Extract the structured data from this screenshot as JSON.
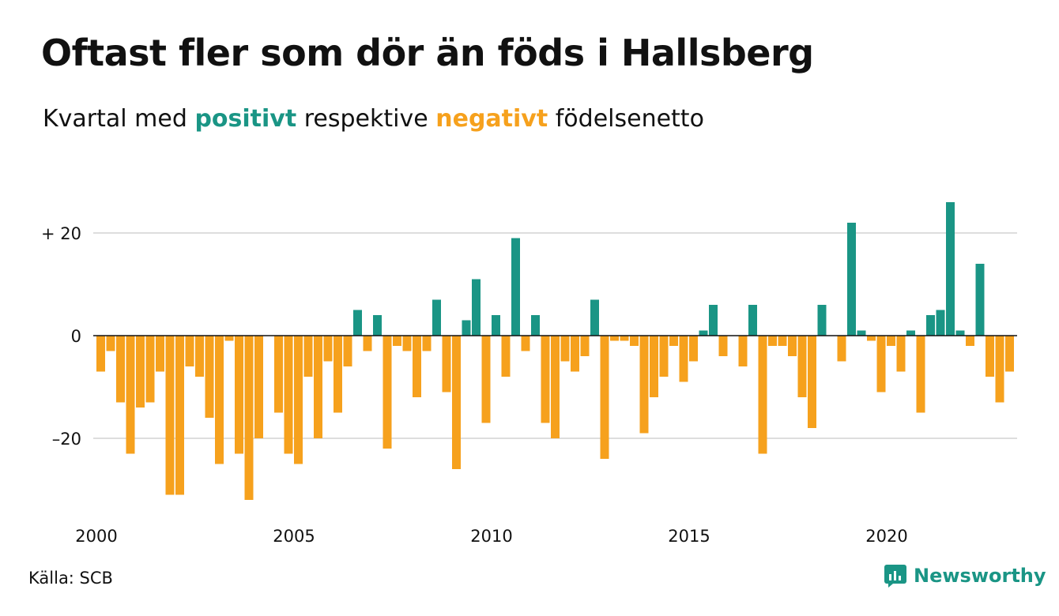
{
  "title": "Oftast fler som dör än föds i Hallsberg",
  "subtitle": {
    "prefix": "Kvartal med",
    "positive_word": "positivt",
    "middle": "respektive",
    "negative_word": "negativt",
    "suffix": "födelsenetto"
  },
  "source": "Källa: SCB",
  "brand": "Newsworthy",
  "colors": {
    "positive": "#1a9585",
    "negative": "#f6a11d",
    "grid": "#dddddd",
    "zero": "#111111"
  },
  "chart_data": {
    "type": "bar",
    "start_year": 2000,
    "start_quarter": 1,
    "values": [
      -7,
      -3,
      -13,
      -23,
      -14,
      -13,
      -7,
      -31,
      -31,
      -6,
      -8,
      -16,
      -25,
      -1,
      -23,
      -32,
      -20,
      0,
      -15,
      -23,
      -25,
      -8,
      -20,
      -5,
      -15,
      -6,
      5,
      -3,
      4,
      -22,
      -2,
      -3,
      -12,
      -3,
      7,
      -11,
      -26,
      3,
      11,
      -17,
      4,
      -8,
      19,
      -3,
      4,
      -17,
      -20,
      -5,
      -7,
      -4,
      7,
      -24,
      -1,
      -1,
      -2,
      -19,
      -12,
      -8,
      -2,
      -9,
      -5,
      1,
      6,
      -4,
      0,
      -6,
      6,
      -23,
      -2,
      -2,
      -4,
      -12,
      -18,
      6,
      0,
      -5,
      22,
      1,
      -1,
      -11,
      -2,
      -7,
      1,
      -15,
      4,
      5,
      26,
      1,
      -2,
      14,
      -8,
      -13,
      -7
    ],
    "xticks": [
      "2000",
      "2005",
      "2010",
      "2015",
      "2020"
    ],
    "yticks": [
      "+ 20",
      "0",
      "–20"
    ],
    "ytick_values": [
      20,
      0,
      -20
    ],
    "ylim": [
      -34,
      28
    ],
    "grid": true
  }
}
